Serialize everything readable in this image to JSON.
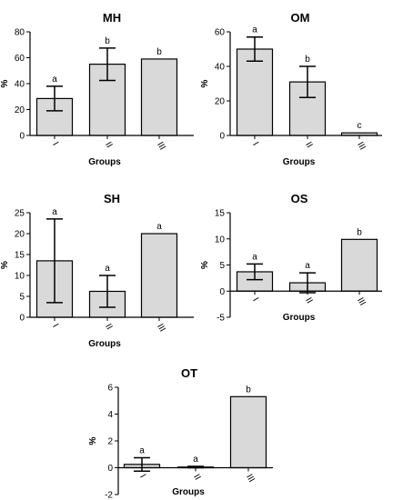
{
  "chart_data": [
    {
      "type": "bar",
      "title": "MH",
      "xlabel": "Groups",
      "ylabel": "%",
      "categories": [
        "I",
        "II",
        "III"
      ],
      "values": [
        28.5,
        55,
        59
      ],
      "error": [
        9.5,
        12.5,
        0
      ],
      "letters": [
        "a",
        "b",
        "b"
      ],
      "ylim": [
        0,
        80
      ],
      "yticks": [
        "0",
        "20",
        "40",
        "60",
        "80"
      ],
      "bar_color": "#d9d9d9"
    },
    {
      "type": "bar",
      "title": "OM",
      "xlabel": "Groups",
      "ylabel": "%",
      "categories": [
        "I",
        "II",
        "III"
      ],
      "values": [
        50,
        31,
        1.5
      ],
      "error": [
        7,
        9,
        0
      ],
      "letters": [
        "a",
        "b",
        "c"
      ],
      "ylim": [
        0,
        60
      ],
      "yticks": [
        "0",
        "20",
        "40",
        "60"
      ],
      "bar_color": "#d9d9d9"
    },
    {
      "type": "bar",
      "title": "SH",
      "xlabel": "Groups",
      "ylabel": "%",
      "categories": [
        "I",
        "II",
        "III"
      ],
      "values": [
        13.5,
        6.2,
        20
      ],
      "error": [
        10,
        3.8,
        0
      ],
      "letters": [
        "a",
        "a",
        "a"
      ],
      "ylim": [
        0,
        25
      ],
      "yticks": [
        "0",
        "5",
        "10",
        "15",
        "20",
        "25"
      ],
      "bar_color": "#d9d9d9"
    },
    {
      "type": "bar",
      "title": "OS",
      "xlabel": "Groups",
      "ylabel": "%",
      "categories": [
        "I",
        "II",
        "III"
      ],
      "values": [
        3.7,
        1.6,
        9.9
      ],
      "error": [
        1.5,
        1.9,
        0
      ],
      "letters": [
        "a",
        "a",
        "b"
      ],
      "ylim": [
        -5,
        15
      ],
      "yticks": [
        "-5",
        "0",
        "5",
        "10",
        "15"
      ],
      "bar_color": "#d9d9d9"
    },
    {
      "type": "bar",
      "title": "OT",
      "xlabel": "Groups",
      "ylabel": "%",
      "categories": [
        "I",
        "II",
        "III"
      ],
      "values": [
        0.25,
        0.05,
        5.3
      ],
      "error": [
        0.5,
        0.05,
        0
      ],
      "letters": [
        "a",
        "a",
        "b"
      ],
      "ylim": [
        -2,
        6
      ],
      "yticks": [
        "-2",
        "0",
        "2",
        "4",
        "6"
      ],
      "bar_color": "#d9d9d9"
    }
  ]
}
